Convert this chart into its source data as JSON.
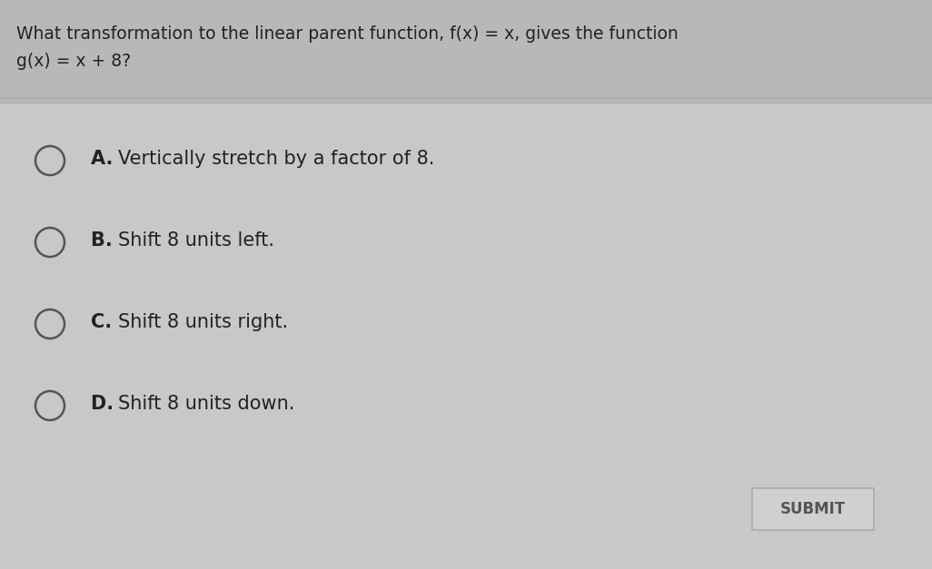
{
  "background_color": "#c8c8c8",
  "header_bg": "#b8b8b8",
  "question_line1": "What transformation to the linear parent function, f(x) = x, gives the function",
  "question_line2": "g(x) = x + 8?",
  "options": [
    {
      "label": "A.",
      "text": "Vertically stretch by a factor of 8."
    },
    {
      "label": "B.",
      "text": "Shift 8 units left."
    },
    {
      "label": "C.",
      "text": "Shift 8 units right."
    },
    {
      "label": "D.",
      "text": "Shift 8 units down."
    }
  ],
  "submit_text": "SUBMIT",
  "submit_bg": "#d0d0d0",
  "submit_border": "#aaaaaa",
  "text_color": "#222222",
  "circle_color": "#555555",
  "separator_color": "#aaaaaa",
  "question_fontsize": 13.5,
  "option_fontsize": 15,
  "submit_fontsize": 12
}
